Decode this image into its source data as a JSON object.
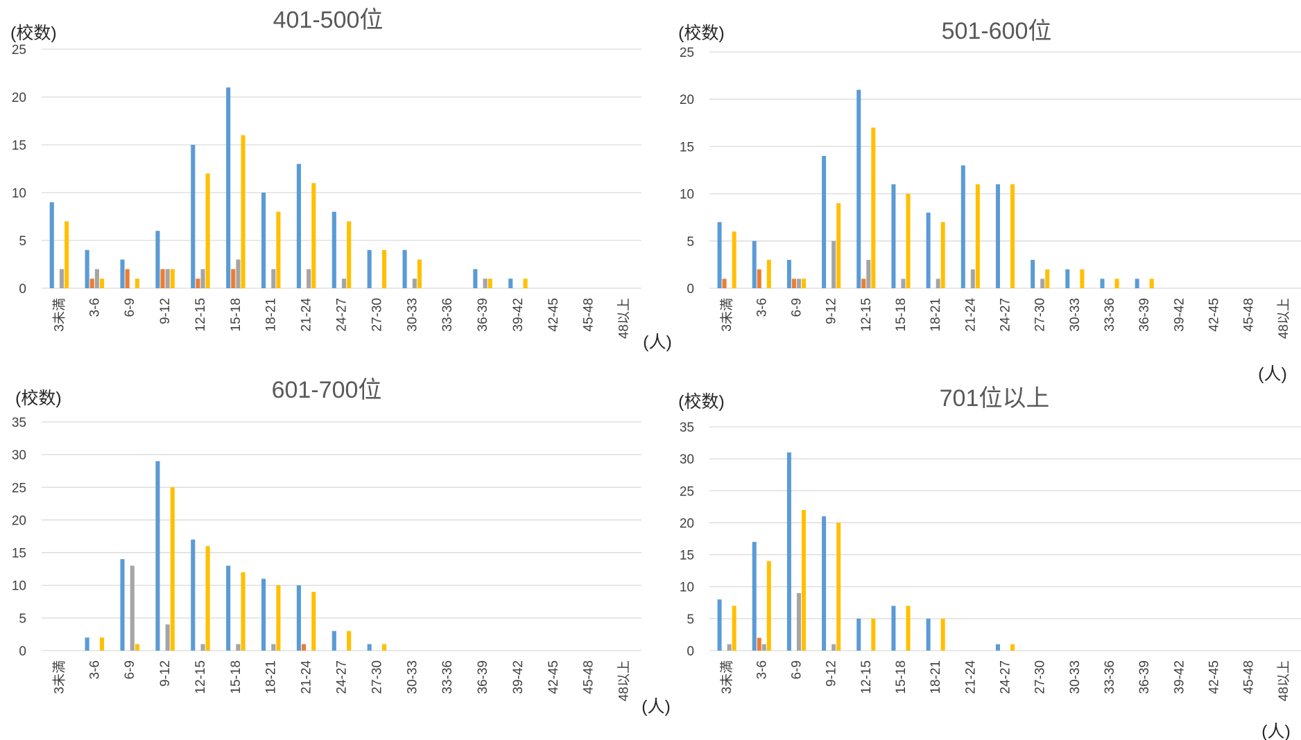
{
  "colors": [
    "#5b9bd5",
    "#ed7d31",
    "#a5a5a5",
    "#ffc000"
  ],
  "chart_data": [
    {
      "type": "bar",
      "title": "401-500位",
      "ylabel": "(校数)",
      "xlabel": "(人)",
      "ylim": [
        0,
        25
      ],
      "yticks": [
        0,
        5,
        10,
        15,
        20,
        25
      ],
      "grid": true,
      "categories": [
        "3未満",
        "3-6",
        "6-9",
        "9-12",
        "12-15",
        "15-18",
        "18-21",
        "21-24",
        "24-27",
        "27-30",
        "30-33",
        "33-36",
        "36-39",
        "39-42",
        "42-45",
        "45-48",
        "48以上"
      ],
      "series": [
        {
          "values": [
            9,
            4,
            3,
            6,
            15,
            21,
            10,
            13,
            8,
            4,
            4,
            0,
            2,
            1,
            0,
            0,
            0
          ]
        },
        {
          "values": [
            0,
            1,
            2,
            2,
            1,
            2,
            0,
            0,
            0,
            0,
            0,
            0,
            0,
            0,
            0,
            0,
            0
          ]
        },
        {
          "values": [
            2,
            2,
            0,
            2,
            2,
            3,
            2,
            2,
            1,
            0,
            1,
            0,
            1,
            0,
            0,
            0,
            0
          ]
        },
        {
          "values": [
            7,
            1,
            1,
            2,
            12,
            16,
            8,
            11,
            7,
            4,
            3,
            0,
            1,
            1,
            0,
            0,
            0
          ]
        }
      ]
    },
    {
      "type": "bar",
      "title": "501-600位",
      "ylabel": "(校数)",
      "xlabel": "(人)",
      "ylim": [
        0,
        25
      ],
      "yticks": [
        0,
        5,
        10,
        15,
        20,
        25
      ],
      "grid": true,
      "categories": [
        "3未満",
        "3-6",
        "6-9",
        "9-12",
        "12-15",
        "15-18",
        "18-21",
        "21-24",
        "24-27",
        "27-30",
        "30-33",
        "33-36",
        "36-39",
        "39-42",
        "42-45",
        "45-48",
        "48以上"
      ],
      "series": [
        {
          "values": [
            7,
            5,
            3,
            14,
            21,
            11,
            8,
            13,
            11,
            3,
            2,
            1,
            1,
            0,
            0,
            0,
            0
          ]
        },
        {
          "values": [
            1,
            2,
            1,
            0,
            1,
            0,
            0,
            0,
            0,
            0,
            0,
            0,
            0,
            0,
            0,
            0,
            0
          ]
        },
        {
          "values": [
            0,
            0,
            1,
            5,
            3,
            1,
            1,
            2,
            0,
            1,
            0,
            0,
            0,
            0,
            0,
            0,
            0
          ]
        },
        {
          "values": [
            6,
            3,
            1,
            9,
            17,
            10,
            7,
            11,
            11,
            2,
            2,
            1,
            1,
            0,
            0,
            0,
            0
          ]
        }
      ]
    },
    {
      "type": "bar",
      "title": "601-700位",
      "ylabel": "(校数)",
      "xlabel": "(人)",
      "ylim": [
        0,
        35
      ],
      "yticks": [
        0,
        5,
        10,
        15,
        20,
        25,
        30,
        35
      ],
      "grid": true,
      "categories": [
        "3未満",
        "3-6",
        "6-9",
        "9-12",
        "12-15",
        "15-18",
        "18-21",
        "21-24",
        "24-27",
        "27-30",
        "30-33",
        "33-36",
        "36-39",
        "39-42",
        "42-45",
        "45-48",
        "48以上"
      ],
      "series": [
        {
          "values": [
            0,
            2,
            14,
            29,
            17,
            13,
            11,
            10,
            3,
            1,
            0,
            0,
            0,
            0,
            0,
            0,
            0
          ]
        },
        {
          "values": [
            0,
            0,
            0,
            0,
            0,
            0,
            0,
            1,
            0,
            0,
            0,
            0,
            0,
            0,
            0,
            0,
            0
          ]
        },
        {
          "values": [
            0,
            0,
            13,
            4,
            1,
            1,
            1,
            0,
            0,
            0,
            0,
            0,
            0,
            0,
            0,
            0,
            0
          ]
        },
        {
          "values": [
            0,
            2,
            1,
            25,
            16,
            12,
            10,
            9,
            3,
            1,
            0,
            0,
            0,
            0,
            0,
            0,
            0
          ]
        }
      ]
    },
    {
      "type": "bar",
      "title": "701位以上",
      "ylabel": "(校数)",
      "xlabel": "(人)",
      "ylim": [
        0,
        35
      ],
      "yticks": [
        0,
        5,
        10,
        15,
        20,
        25,
        30,
        35
      ],
      "grid": true,
      "categories": [
        "3未満",
        "3-6",
        "6-9",
        "9-12",
        "12-15",
        "15-18",
        "18-21",
        "21-24",
        "24-27",
        "27-30",
        "30-33",
        "33-36",
        "36-39",
        "39-42",
        "42-45",
        "45-48",
        "48以上"
      ],
      "series": [
        {
          "values": [
            8,
            17,
            31,
            21,
            5,
            7,
            5,
            0,
            1,
            0,
            0,
            0,
            0,
            0,
            0,
            0,
            0
          ]
        },
        {
          "values": [
            0,
            2,
            0,
            0,
            0,
            0,
            0,
            0,
            0,
            0,
            0,
            0,
            0,
            0,
            0,
            0,
            0
          ]
        },
        {
          "values": [
            1,
            1,
            9,
            1,
            0,
            0,
            0,
            0,
            0,
            0,
            0,
            0,
            0,
            0,
            0,
            0,
            0
          ]
        },
        {
          "values": [
            7,
            14,
            22,
            20,
            5,
            7,
            5,
            0,
            1,
            0,
            0,
            0,
            0,
            0,
            0,
            0,
            0
          ]
        }
      ]
    }
  ]
}
